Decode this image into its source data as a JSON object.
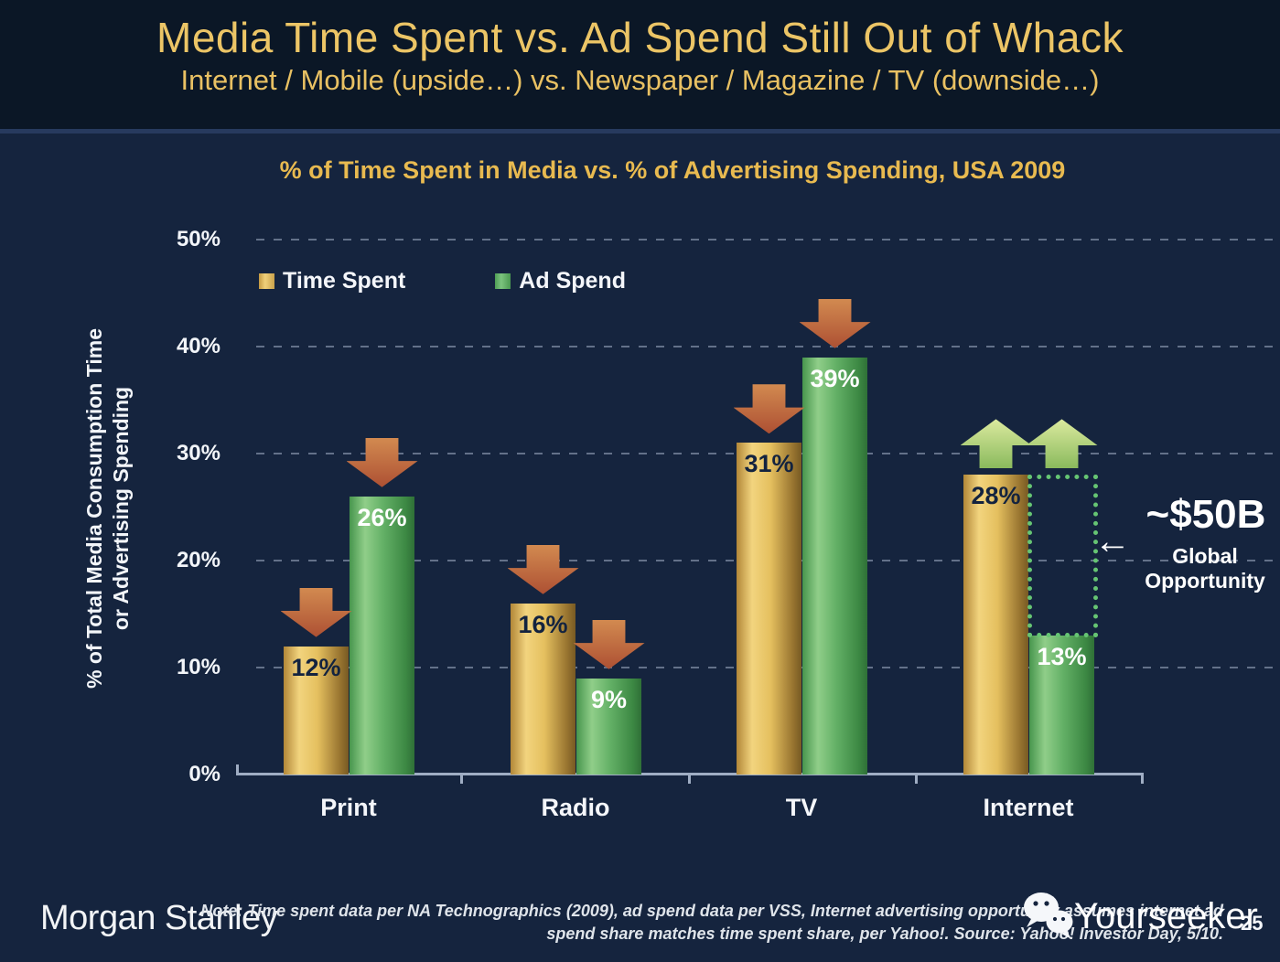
{
  "slide": {
    "title": "Media Time Spent vs. Ad Spend Still Out of Whack",
    "subtitle": "Internet / Mobile (upside…) vs. Newspaper / Magazine / TV (downside…)",
    "page_number": "25"
  },
  "footer": {
    "logo": "Morgan Stanley",
    "note_line1": "Note: Time spent data per NA Technographics (2009), ad spend data per VSS, Internet advertising opportunity assumes internet ad",
    "note_line2": "spend share matches time spent share, per Yahoo!. Source: Yahoo! Investor Day, 5/10.",
    "watermark": "Yourseeker"
  },
  "colors": {
    "background": "#15243e",
    "header_background": "#0b1726",
    "title_gold": "#ecc566",
    "time_spent_gold": "#d9ad4e",
    "ad_spend_green": "#57a55c",
    "down_arrow_orange": "#c46a3e",
    "up_arrow_green": "#a9cc72",
    "opportunity_dotted_green": "#66c573"
  },
  "chart_data": {
    "type": "bar",
    "title": "% of Time Spent in Media vs. % of Advertising Spending, USA 2009",
    "ylabel_line1": "% of Total Media Consumption Time",
    "ylabel_line2": "or Advertising Spending",
    "categories": [
      "Print",
      "Radio",
      "TV",
      "Internet"
    ],
    "series": [
      {
        "name": "Time Spent",
        "color": "#d9ad4e",
        "values": [
          12,
          16,
          31,
          28
        ],
        "value_labels": [
          "12%",
          "16%",
          "31%",
          "28%"
        ],
        "trend_arrows": [
          "down",
          "down",
          "down",
          "up"
        ]
      },
      {
        "name": "Ad Spend",
        "color": "#57a55c",
        "values": [
          26,
          9,
          39,
          13
        ],
        "value_labels": [
          "26%",
          "9%",
          "39%",
          "13%"
        ],
        "trend_arrows": [
          "down",
          "down",
          "down",
          "up"
        ]
      }
    ],
    "ylim": [
      0,
      50
    ],
    "ytick_step": 10,
    "yticks": [
      "0%",
      "10%",
      "20%",
      "30%",
      "40%",
      "50%"
    ],
    "grid": "dashed-horizontal",
    "legend_position": "top-left-inside",
    "annotation": {
      "value": "~$50B",
      "arrow_glyph": "←",
      "label_line1": "Global",
      "label_line2": "Opportunity",
      "band_category": "Internet",
      "band_from_pct": 13,
      "band_to_pct": 28
    }
  }
}
